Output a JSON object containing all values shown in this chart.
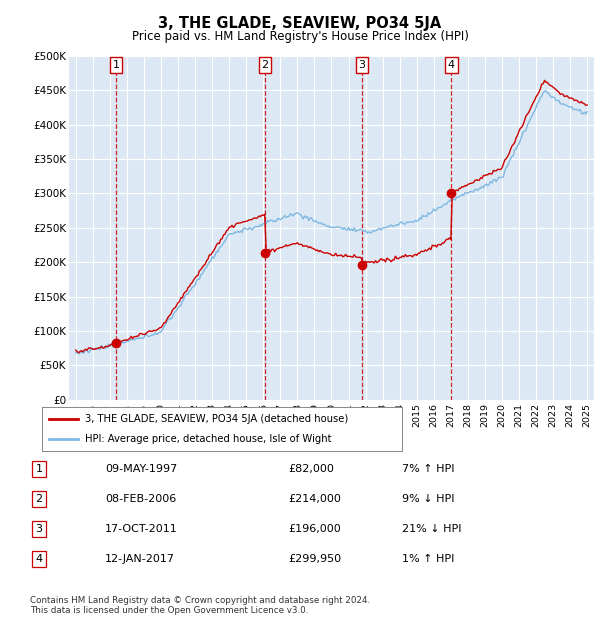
{
  "title": "3, THE GLADE, SEAVIEW, PO34 5JA",
  "subtitle": "Price paid vs. HM Land Registry's House Price Index (HPI)",
  "ylabel_ticks": [
    "£0",
    "£50K",
    "£100K",
    "£150K",
    "£200K",
    "£250K",
    "£300K",
    "£350K",
    "£400K",
    "£450K",
    "£500K"
  ],
  "ytick_vals": [
    0,
    50000,
    100000,
    150000,
    200000,
    250000,
    300000,
    350000,
    400000,
    450000,
    500000
  ],
  "xlim_start": 1994.6,
  "xlim_end": 2025.4,
  "ylim_min": 0,
  "ylim_max": 500000,
  "bg_color": "#dce9f5",
  "grid_color": "#ffffff",
  "purchases": [
    {
      "num": 1,
      "year": 1997.36,
      "price": 82000
    },
    {
      "num": 2,
      "year": 2006.1,
      "price": 214000
    },
    {
      "num": 3,
      "year": 2011.79,
      "price": 196000
    },
    {
      "num": 4,
      "year": 2017.03,
      "price": 299950
    }
  ],
  "hpi_line_color": "#7fb8e0",
  "price_line_color": "#cc0000",
  "legend_label1": "3, THE GLADE, SEAVIEW, PO34 5JA (detached house)",
  "legend_label2": "HPI: Average price, detached house, Isle of Wight",
  "footnote": "Contains HM Land Registry data © Crown copyright and database right 2024.\nThis data is licensed under the Open Government Licence v3.0.",
  "table_rows": [
    [
      "1",
      "09-MAY-1997",
      "£82,000",
      "7% ↑ HPI"
    ],
    [
      "2",
      "08-FEB-2006",
      "£214,000",
      "9% ↓ HPI"
    ],
    [
      "3",
      "17-OCT-2011",
      "£196,000",
      "21% ↓ HPI"
    ],
    [
      "4",
      "12-JAN-2017",
      "£299,950",
      "1% ↑ HPI"
    ]
  ]
}
